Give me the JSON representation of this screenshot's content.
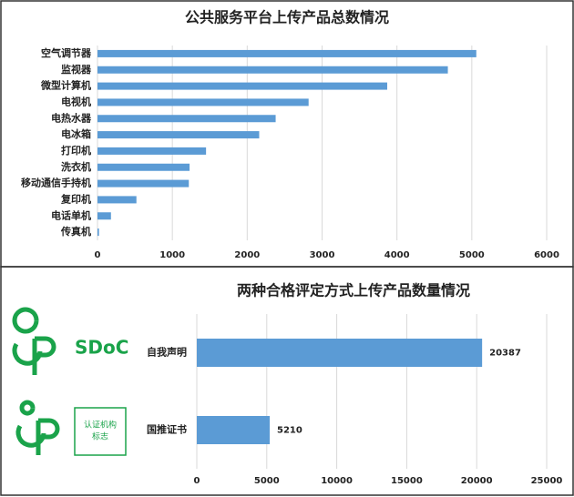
{
  "chart_data": [
    {
      "type": "barh",
      "title": "公共服务平台上传产品总数情况",
      "categories": [
        "空气调节器",
        "监视器",
        "微型计算机",
        "电视机",
        "电热水器",
        "电冰箱",
        "打印机",
        "洗衣机",
        "移动通信手持机",
        "复印机",
        "电话单机",
        "传真机"
      ],
      "values": [
        5060,
        4680,
        3870,
        2820,
        2380,
        2160,
        1450,
        1230,
        1220,
        520,
        180,
        20
      ],
      "color": "#5b9bd5",
      "xlim": [
        0,
        6000
      ],
      "xticks": [
        0,
        1000,
        2000,
        3000,
        4000,
        5000,
        6000
      ],
      "grid": true
    },
    {
      "type": "barh",
      "title": "两种合格评定方式上传产品数量情况",
      "categories": [
        "自我声明",
        "国推证书"
      ],
      "values": [
        20387,
        5210
      ],
      "color": "#5b9bd5",
      "xlim": [
        0,
        25000
      ],
      "xticks": [
        0,
        5000,
        10000,
        15000,
        20000,
        25000
      ],
      "grid": true,
      "data_labels": true
    }
  ],
  "logos": [
    {
      "label": "SDoC"
    },
    {
      "label_lines": [
        "认证机构",
        "标志"
      ]
    }
  ]
}
